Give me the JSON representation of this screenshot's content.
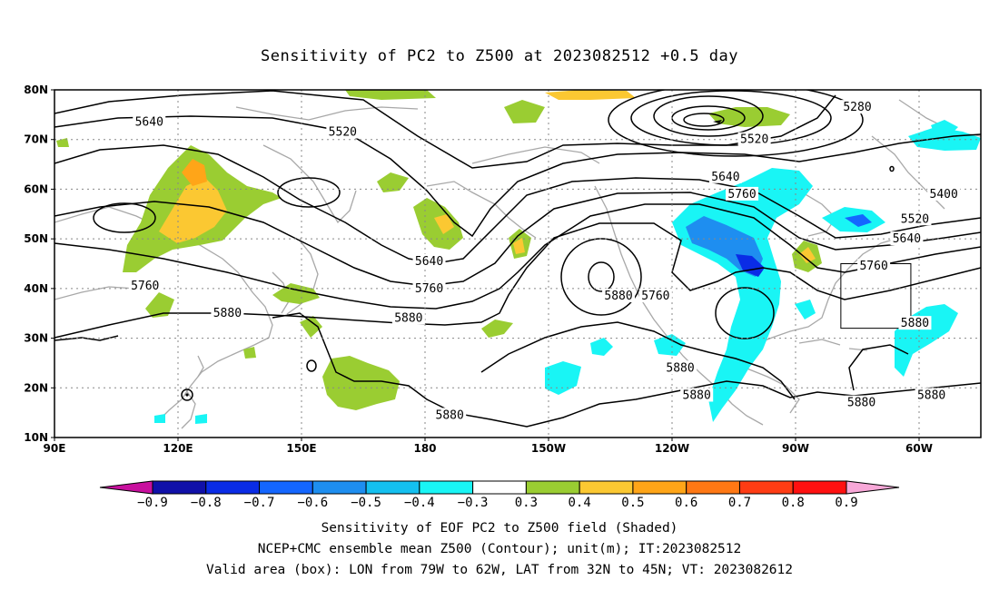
{
  "title": "Sensitivity of PC2 to Z500 at 2023082512 +0.5 day",
  "axes": {
    "lat_ticks": [
      "80N",
      "70N",
      "60N",
      "50N",
      "40N",
      "30N",
      "20N",
      "10N"
    ],
    "lon_ticks": [
      "90E",
      "120E",
      "150E",
      "180",
      "150W",
      "120W",
      "90W",
      "60W"
    ]
  },
  "map_extent": {
    "lon_west": 90,
    "lon_east": 315,
    "lat_south": 10,
    "lat_north": 80
  },
  "valid_box": {
    "lon_west": 281,
    "lon_east": 298,
    "lat_south": 32,
    "lat_north": 45
  },
  "contour_labels": [
    {
      "text": "5640",
      "lon": 113,
      "lat": 73.5
    },
    {
      "text": "5520",
      "lon": 160,
      "lat": 71.5
    },
    {
      "text": "5520",
      "lon": 260,
      "lat": 70
    },
    {
      "text": "5280",
      "lon": 285,
      "lat": 76.5
    },
    {
      "text": "5640",
      "lon": 253,
      "lat": 62.5
    },
    {
      "text": "5760",
      "lon": 257,
      "lat": 59
    },
    {
      "text": "5400",
      "lon": 306,
      "lat": 59
    },
    {
      "text": "5520",
      "lon": 299,
      "lat": 54
    },
    {
      "text": "5640",
      "lon": 297,
      "lat": 50
    },
    {
      "text": "5760",
      "lon": 289,
      "lat": 44.5
    },
    {
      "text": "5760",
      "lon": 112,
      "lat": 40.5
    },
    {
      "text": "5640",
      "lon": 181,
      "lat": 45.5
    },
    {
      "text": "5760",
      "lon": 181,
      "lat": 40
    },
    {
      "text": "5880",
      "lon": 227,
      "lat": 38.5
    },
    {
      "text": "5760",
      "lon": 236,
      "lat": 38.5
    },
    {
      "text": "5880",
      "lon": 132,
      "lat": 35
    },
    {
      "text": "5880",
      "lon": 176,
      "lat": 34
    },
    {
      "text": "5880",
      "lon": 299,
      "lat": 33
    },
    {
      "text": "5880",
      "lon": 242,
      "lat": 24
    },
    {
      "text": "5880",
      "lon": 246,
      "lat": 18.5
    },
    {
      "text": "5880",
      "lon": 303,
      "lat": 18.5
    },
    {
      "text": "5880",
      "lon": 286,
      "lat": 17
    },
    {
      "text": "5880",
      "lon": 186,
      "lat": 14.5
    }
  ],
  "colorbar": {
    "colors": [
      "#c8109e",
      "#1010a8",
      "#0a2ce6",
      "#1466ff",
      "#1e8ef0",
      "#14c0f0",
      "#19f5f5",
      "#ffffff",
      "#9acd32",
      "#fbc832",
      "#ffa518",
      "#ff7814",
      "#ff3c14",
      "#ff1010",
      "#f8a8d8"
    ],
    "labels": [
      "-0.9",
      "-0.8",
      "-0.7",
      "-0.6",
      "-0.5",
      "-0.4",
      "-0.3",
      "0.3",
      "0.4",
      "0.5",
      "0.6",
      "0.7",
      "0.8",
      "0.9"
    ]
  },
  "captions": [
    "Sensitivity of EOF PC2 to Z500 field (Shaded)",
    "NCEP+CMC ensemble mean Z500 (Contour); unit(m); IT:2023082512",
    "Valid area (box): LON from 79W to 62W, LAT from 32N to 45N; VT: 2023082612"
  ]
}
